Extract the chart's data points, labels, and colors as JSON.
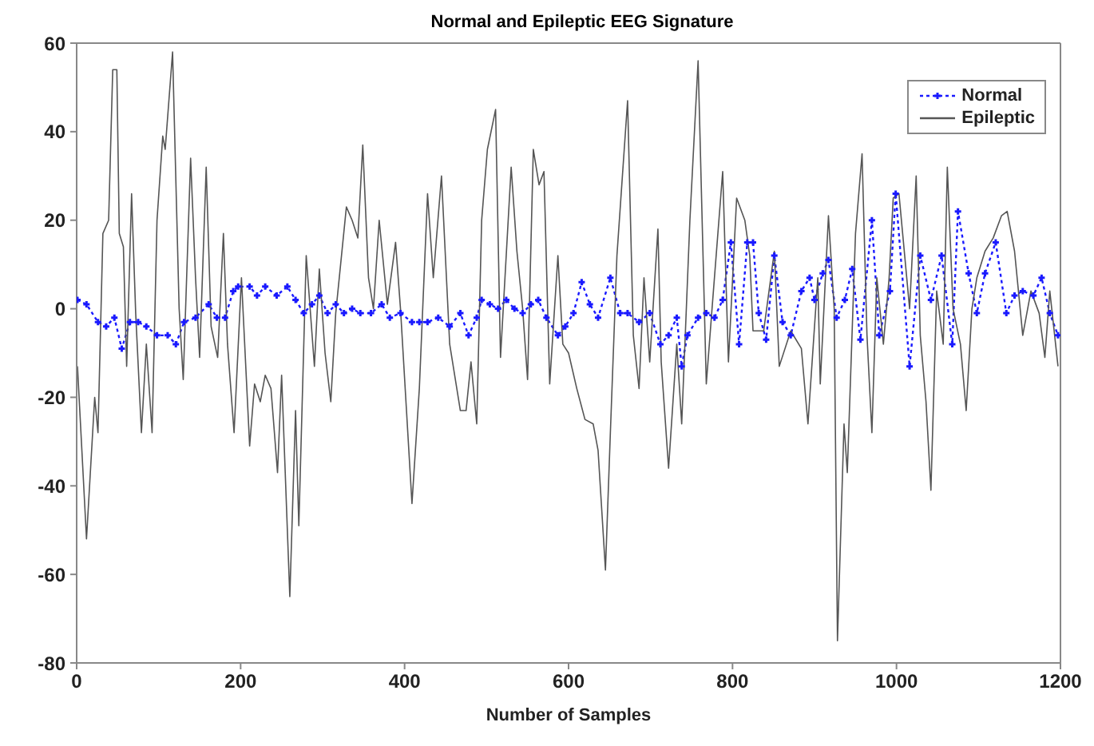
{
  "chart_data": {
    "type": "line",
    "title": "Normal and Epileptic EEG Signature",
    "xlabel": "Number of Samples",
    "xlim": [
      0,
      1200
    ],
    "xticks": [
      0,
      200,
      400,
      600,
      800,
      1000,
      1200
    ],
    "ylim": [
      -80,
      60
    ],
    "yticks": [
      -80,
      -60,
      -40,
      -20,
      0,
      20,
      40,
      60
    ],
    "legend": "top right",
    "series": [
      {
        "name": "Normal",
        "color": "#1a1aff",
        "marker": "cross",
        "line_style": "dotted",
        "x": [
          1,
          12,
          26,
          36,
          46,
          55,
          65,
          75,
          85,
          98,
          111,
          121,
          131,
          145,
          161,
          171,
          181,
          191,
          197,
          211,
          220,
          230,
          244,
          257,
          267,
          277,
          287,
          296,
          306,
          316,
          326,
          336,
          346,
          359,
          372,
          382,
          395,
          409,
          418,
          428,
          441,
          455,
          468,
          478,
          488,
          494,
          504,
          514,
          524,
          534,
          544,
          554,
          563,
          573,
          587,
          596,
          606,
          616,
          626,
          636,
          651,
          663,
          672,
          686,
          699,
          712,
          722,
          732,
          738,
          745,
          758,
          768,
          778,
          788,
          798,
          808,
          818,
          825,
          832,
          841,
          851,
          861,
          871,
          884,
          894,
          900,
          910,
          917,
          927,
          937,
          946,
          956,
          970,
          979,
          992,
          999,
          1016,
          1029,
          1042,
          1055,
          1068,
          1075,
          1088,
          1098,
          1108,
          1121,
          1134,
          1144,
          1154,
          1167,
          1177,
          1187,
          1197
        ],
        "values": [
          2,
          1,
          -3,
          -4,
          -2,
          -9,
          -3,
          -3,
          -4,
          -6,
          -6,
          -8,
          -3,
          -2,
          1,
          -2,
          -2,
          4,
          5,
          5,
          3,
          5,
          3,
          5,
          2,
          -1,
          1,
          3,
          -1,
          1,
          -1,
          0,
          -1,
          -1,
          1,
          -2,
          -1,
          -3,
          -3,
          -3,
          -2,
          -4,
          -1,
          -6,
          -2,
          2,
          1,
          0,
          2,
          0,
          -1,
          1,
          2,
          -2,
          -6,
          -4,
          -1,
          6,
          1,
          -2,
          7,
          -1,
          -1,
          -3,
          -1,
          -8,
          -6,
          -2,
          -13,
          -6,
          -2,
          -1,
          -2,
          2,
          15,
          -8,
          15,
          15,
          -1,
          -7,
          12,
          -3,
          -6,
          4,
          7,
          2,
          8,
          11,
          -2,
          2,
          9,
          -7,
          20,
          -6,
          4,
          26,
          -13,
          12,
          2,
          12,
          -8,
          22,
          8,
          -1,
          8,
          15,
          -1,
          3,
          4,
          3,
          7,
          -1,
          -6
        ]
      },
      {
        "name": "Epileptic",
        "color": "#555555",
        "marker": "none",
        "line_style": "solid",
        "x": [
          1,
          12,
          22,
          26,
          32,
          39,
          44,
          49,
          52,
          57,
          61,
          67,
          72,
          79,
          85,
          92,
          98,
          105,
          108,
          117,
          125,
          130,
          139,
          145,
          150,
          158,
          164,
          172,
          179,
          184,
          192,
          201,
          211,
          217,
          224,
          230,
          237,
          245,
          250,
          260,
          267,
          271,
          280,
          290,
          296,
          303,
          310,
          316,
          329,
          336,
          343,
          349,
          356,
          362,
          369,
          379,
          389,
          395,
          409,
          418,
          428,
          435,
          445,
          455,
          468,
          475,
          481,
          488,
          494,
          501,
          511,
          517,
          530,
          537,
          544,
          550,
          557,
          564,
          570,
          577,
          587,
          593,
          600,
          610,
          620,
          630,
          636,
          645,
          651,
          659,
          672,
          679,
          686,
          692,
          699,
          709,
          713,
          722,
          732,
          738,
          748,
          758,
          768,
          775,
          788,
          795,
          805,
          815,
          821,
          825,
          838,
          851,
          857,
          871,
          884,
          892,
          904,
          907,
          917,
          924,
          928,
          936,
          940,
          950,
          958,
          964,
          970,
          976,
          984,
          991,
          996,
          1003,
          1016,
          1024,
          1029,
          1036,
          1042,
          1049,
          1057,
          1062,
          1069,
          1078,
          1085,
          1092,
          1098,
          1108,
          1118,
          1128,
          1135,
          1144,
          1154,
          1164,
          1174,
          1181,
          1187,
          1197
        ],
        "values": [
          -13,
          -52,
          -20,
          -28,
          17,
          20,
          54,
          54,
          17,
          14,
          -13,
          26,
          -1,
          -28,
          -8,
          -28,
          20,
          39,
          36,
          58,
          0,
          -16,
          34,
          7,
          -11,
          32,
          -4,
          -11,
          17,
          -8,
          -28,
          7,
          -31,
          -17,
          -21,
          -15,
          -18,
          -37,
          -15,
          -65,
          -23,
          -49,
          12,
          -13,
          9,
          -10,
          -21,
          -1,
          23,
          20,
          16,
          37,
          7,
          0,
          20,
          1,
          15,
          0,
          -44,
          -18,
          26,
          7,
          30,
          -8,
          -23,
          -23,
          -12,
          -26,
          20,
          36,
          45,
          -11,
          32,
          13,
          0,
          -16,
          36,
          28,
          31,
          -17,
          12,
          -8,
          -10,
          -18,
          -25,
          -26,
          -32,
          -59,
          -28,
          12,
          47,
          -6,
          -18,
          7,
          -12,
          18,
          -12,
          -36,
          -8,
          -26,
          20,
          56,
          -17,
          0,
          31,
          -12,
          25,
          20,
          12,
          -5,
          -5,
          13,
          -13,
          -5,
          -9,
          -26,
          7,
          -17,
          21,
          0,
          -75,
          -26,
          -37,
          17,
          35,
          -6,
          -28,
          7,
          -8,
          7,
          25,
          26,
          0,
          30,
          -6,
          -21,
          -41,
          4,
          -8,
          32,
          0,
          -8,
          -23,
          0,
          7,
          13,
          16,
          21,
          22,
          13,
          -6,
          4,
          -1,
          -11,
          4,
          -13
        ]
      }
    ]
  }
}
